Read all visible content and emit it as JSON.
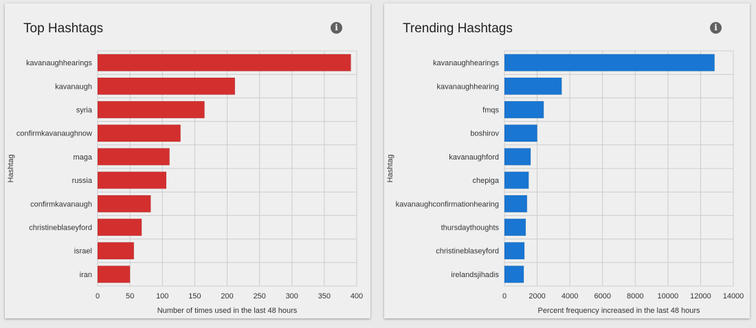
{
  "chart_data": [
    {
      "type": "bar",
      "orientation": "horizontal",
      "title": "Top Hashtags",
      "ylabel": "Hashtag",
      "xlabel": "Number of times used in the last 48 hours",
      "color": "#d32f2f",
      "categories": [
        "kavanaughhearings",
        "kavanaugh",
        "syria",
        "confirmkavanaughnow",
        "maga",
        "russia",
        "confirmkavanaugh",
        "christineblaseyford",
        "israel",
        "iran"
      ],
      "values": [
        391,
        212,
        165,
        128,
        111,
        106,
        82,
        68,
        56,
        50
      ],
      "xlim": [
        0,
        400
      ],
      "xticks": [
        0,
        50,
        100,
        150,
        200,
        250,
        300,
        350,
        400
      ],
      "grid": true
    },
    {
      "type": "bar",
      "orientation": "horizontal",
      "title": "Trending Hashtags",
      "ylabel": "Hashtag",
      "xlabel": "Percent frequency increased in the last 48 hours",
      "color": "#1976d2",
      "categories": [
        "kavanaughhearings",
        "kavanaughhearing",
        "fmqs",
        "boshirov",
        "kavanaughford",
        "chepiga",
        "kavanaughconfirmationhearing",
        "thursdaythoughts",
        "christineblaseyford",
        "irelandsjihadis"
      ],
      "values": [
        12850,
        3500,
        2400,
        2000,
        1600,
        1480,
        1380,
        1300,
        1220,
        1180
      ],
      "xlim": [
        0,
        14000
      ],
      "xticks": [
        0,
        2000,
        4000,
        6000,
        8000,
        10000,
        12000,
        14000
      ],
      "grid": true
    }
  ],
  "cards": [
    {
      "title": "Top Hashtags",
      "info_icon": "info-icon"
    },
    {
      "title": "Trending Hashtags",
      "info_icon": "info-icon"
    }
  ]
}
